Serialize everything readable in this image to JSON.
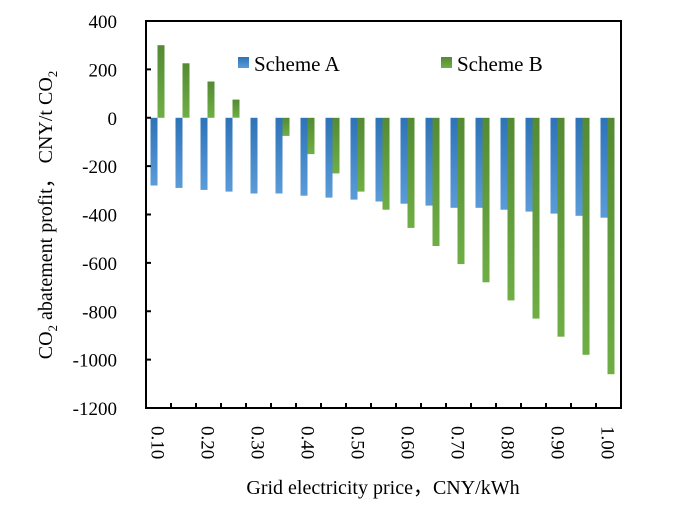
{
  "chart_data": {
    "type": "bar",
    "title": "",
    "xlabel": "Grid electricity price，CNY/kWh",
    "ylabel": "CO2 abatement profit，CNY/t CO2",
    "ylabel_parts": {
      "co": "CO",
      "sub1": "2",
      "middle": " abatement profit，  CNY/t CO",
      "sub2": "2"
    },
    "ylim": [
      -1200,
      400
    ],
    "yticks": [
      400,
      200,
      0,
      -200,
      -400,
      -600,
      -800,
      -1000,
      -1200
    ],
    "ytick_labels": [
      "400",
      "200",
      "0",
      "-200",
      "-400",
      "-600",
      "-800",
      "-1000",
      "-1200"
    ],
    "categories": [
      "0.10",
      "0.15",
      "0.20",
      "0.25",
      "0.30",
      "0.35",
      "0.40",
      "0.45",
      "0.50",
      "0.55",
      "0.60",
      "0.65",
      "0.70",
      "0.75",
      "0.80",
      "0.85",
      "0.90",
      "0.95",
      "1.00"
    ],
    "xtick_labels_shown": [
      "0.10",
      "",
      "0.20",
      "",
      "0.30",
      "",
      "0.40",
      "",
      "0.50",
      "",
      "0.60",
      "",
      "0.70",
      "",
      "0.80",
      "",
      "0.90",
      "",
      "1.00"
    ],
    "grid": false,
    "legend_position": "top-center",
    "series": [
      {
        "name": "Scheme A",
        "color": "#3d7fc4",
        "values": [
          -280,
          -290,
          -298,
          -305,
          -313,
          -313,
          -322,
          -330,
          -338,
          -346,
          -355,
          -363,
          -372,
          -372,
          -380,
          -388,
          -396,
          -405,
          -413
        ]
      },
      {
        "name": "Scheme B",
        "color": "#5f9a3b",
        "values": [
          300,
          225,
          150,
          75,
          0,
          -75,
          -150,
          -230,
          -305,
          -380,
          -455,
          -530,
          -605,
          -680,
          -755,
          -830,
          -905,
          -980,
          -1060
        ]
      }
    ]
  }
}
